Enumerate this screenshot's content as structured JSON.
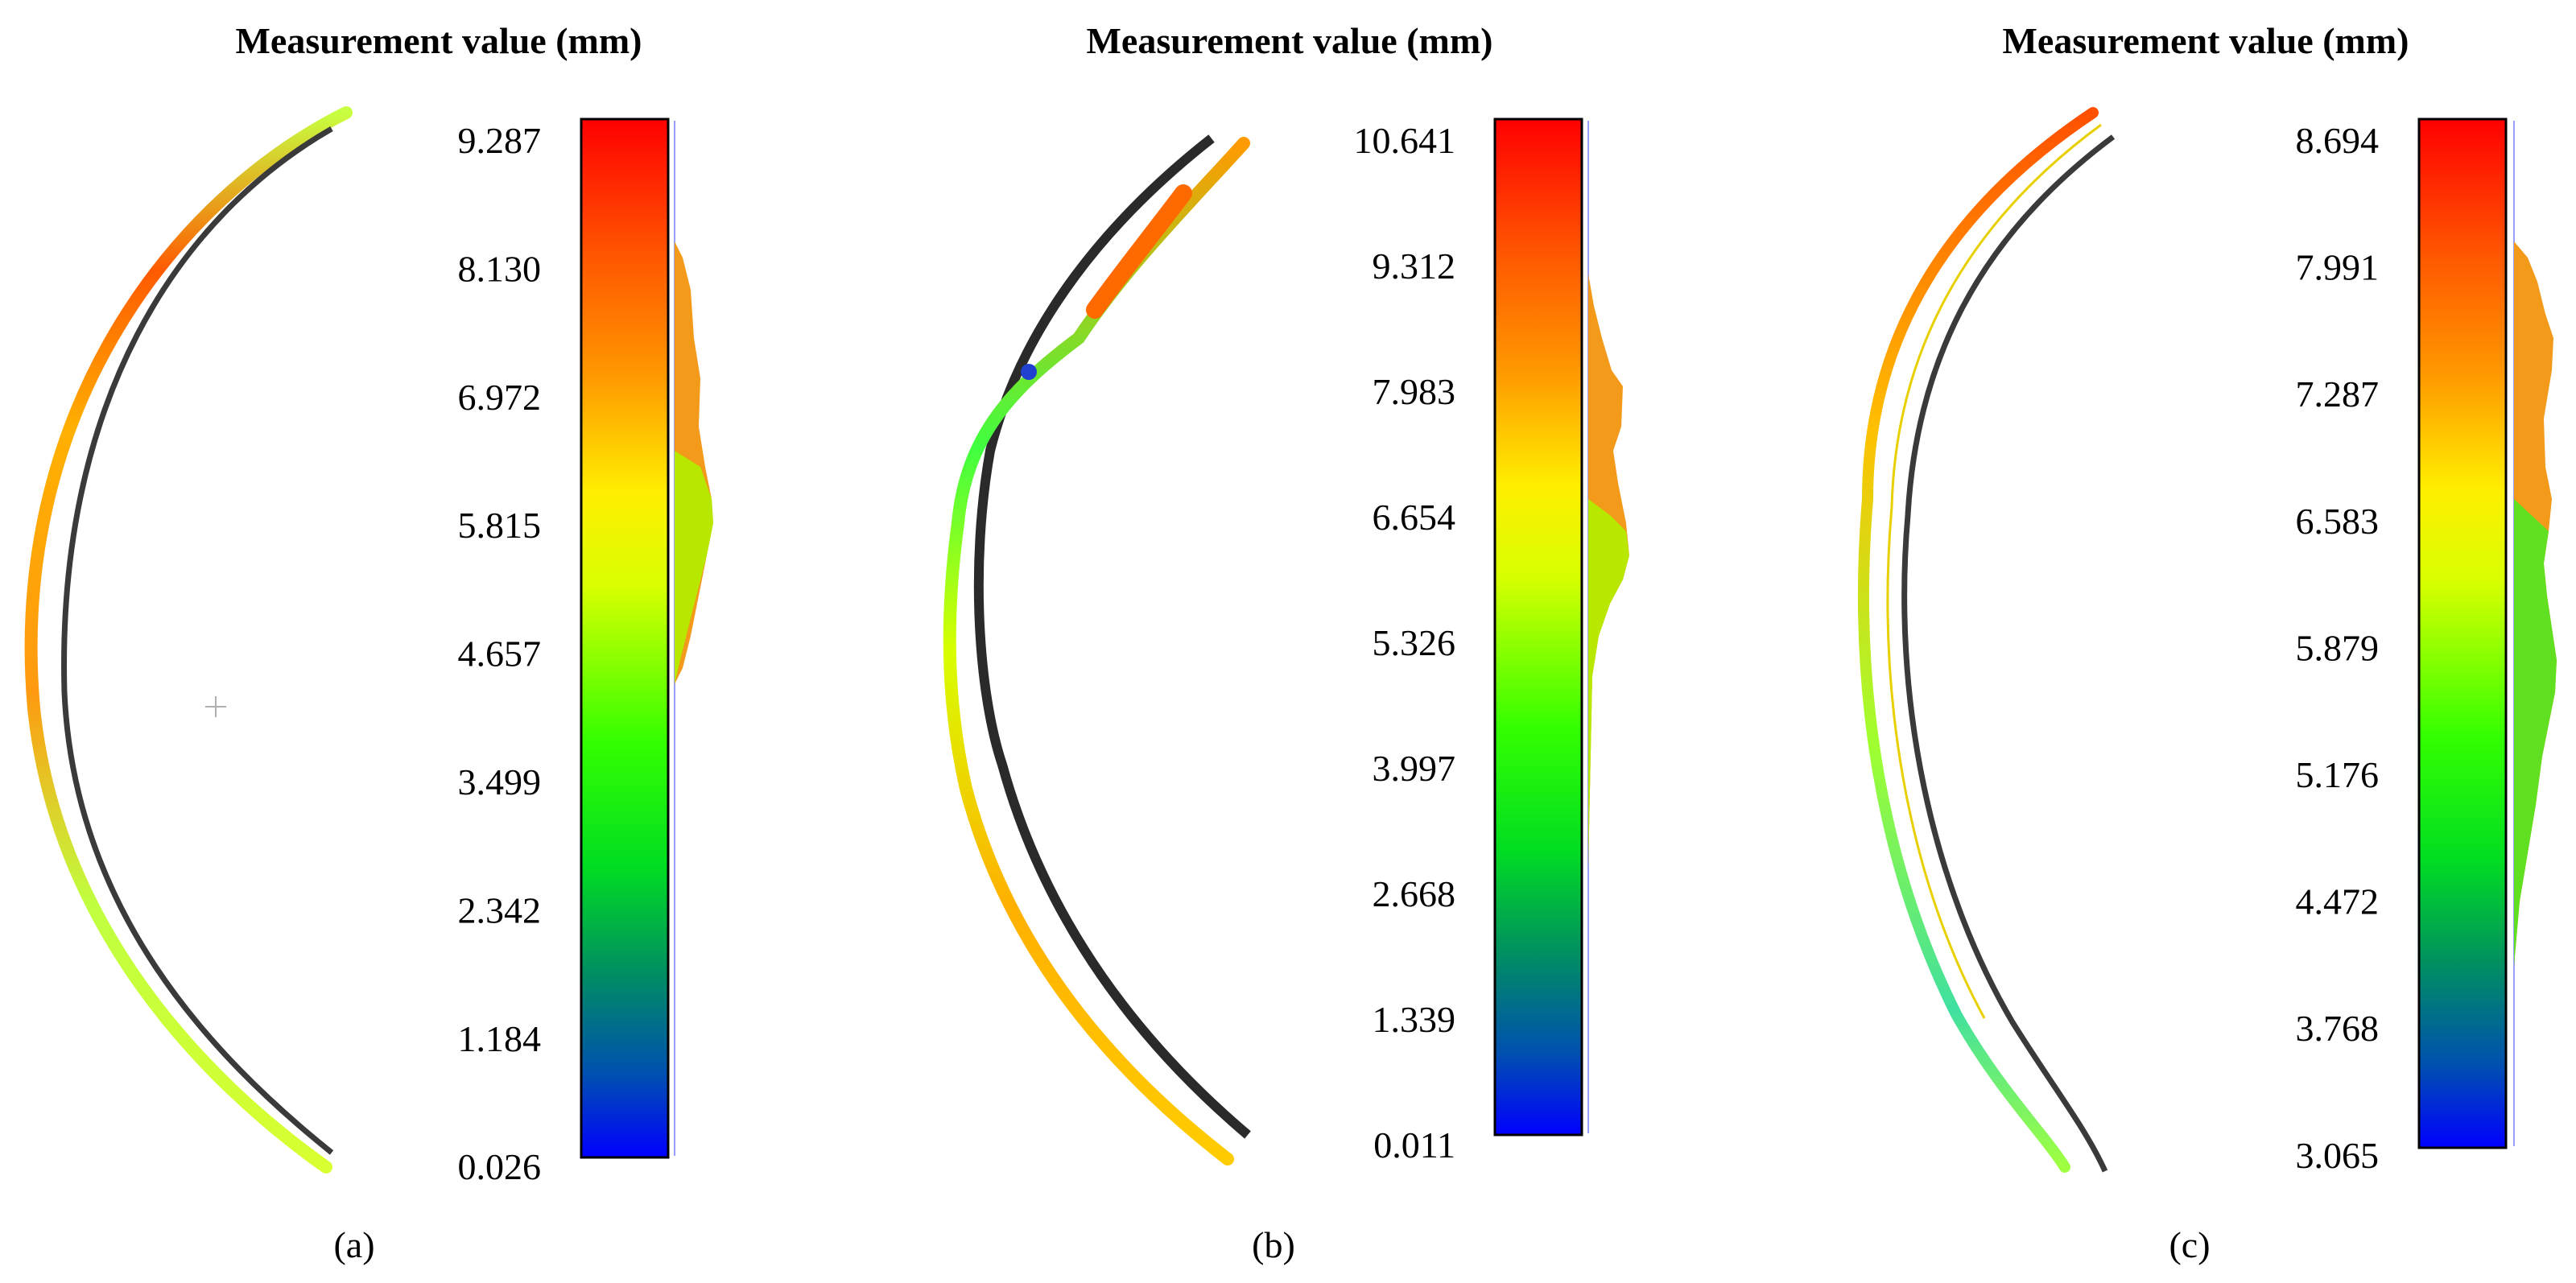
{
  "panels": [
    {
      "title": "Measurement value (mm)",
      "caption": "(a)",
      "ticks": [
        "9.287",
        "8.130",
        "6.972",
        "5.815",
        "4.657",
        "3.499",
        "2.342",
        "1.184",
        "0.026"
      ],
      "range": [
        0.026,
        9.287
      ]
    },
    {
      "title": "Measurement value (mm)",
      "caption": "(b)",
      "ticks": [
        "10.641",
        "9.312",
        "7.983",
        "6.654",
        "5.326",
        "3.997",
        "2.668",
        "1.339",
        "0.011"
      ],
      "range": [
        0.011,
        10.641
      ]
    },
    {
      "title": "Measurement value (mm)",
      "caption": "(c)",
      "ticks": [
        "8.694",
        "7.991",
        "7.287",
        "6.583",
        "5.879",
        "5.176",
        "4.472",
        "3.768",
        "3.065"
      ],
      "range": [
        3.065,
        8.694
      ]
    }
  ],
  "colors": {
    "scale_stops": [
      "#ff0000",
      "#ff8000",
      "#ffff00",
      "#a8ff00",
      "#00ff00",
      "#00cc33",
      "#008866",
      "#0044cc",
      "#0000ff"
    ],
    "profile": "#3a3a3a",
    "histogram": "#f39a1a",
    "histogram_low": "#a0e000"
  }
}
